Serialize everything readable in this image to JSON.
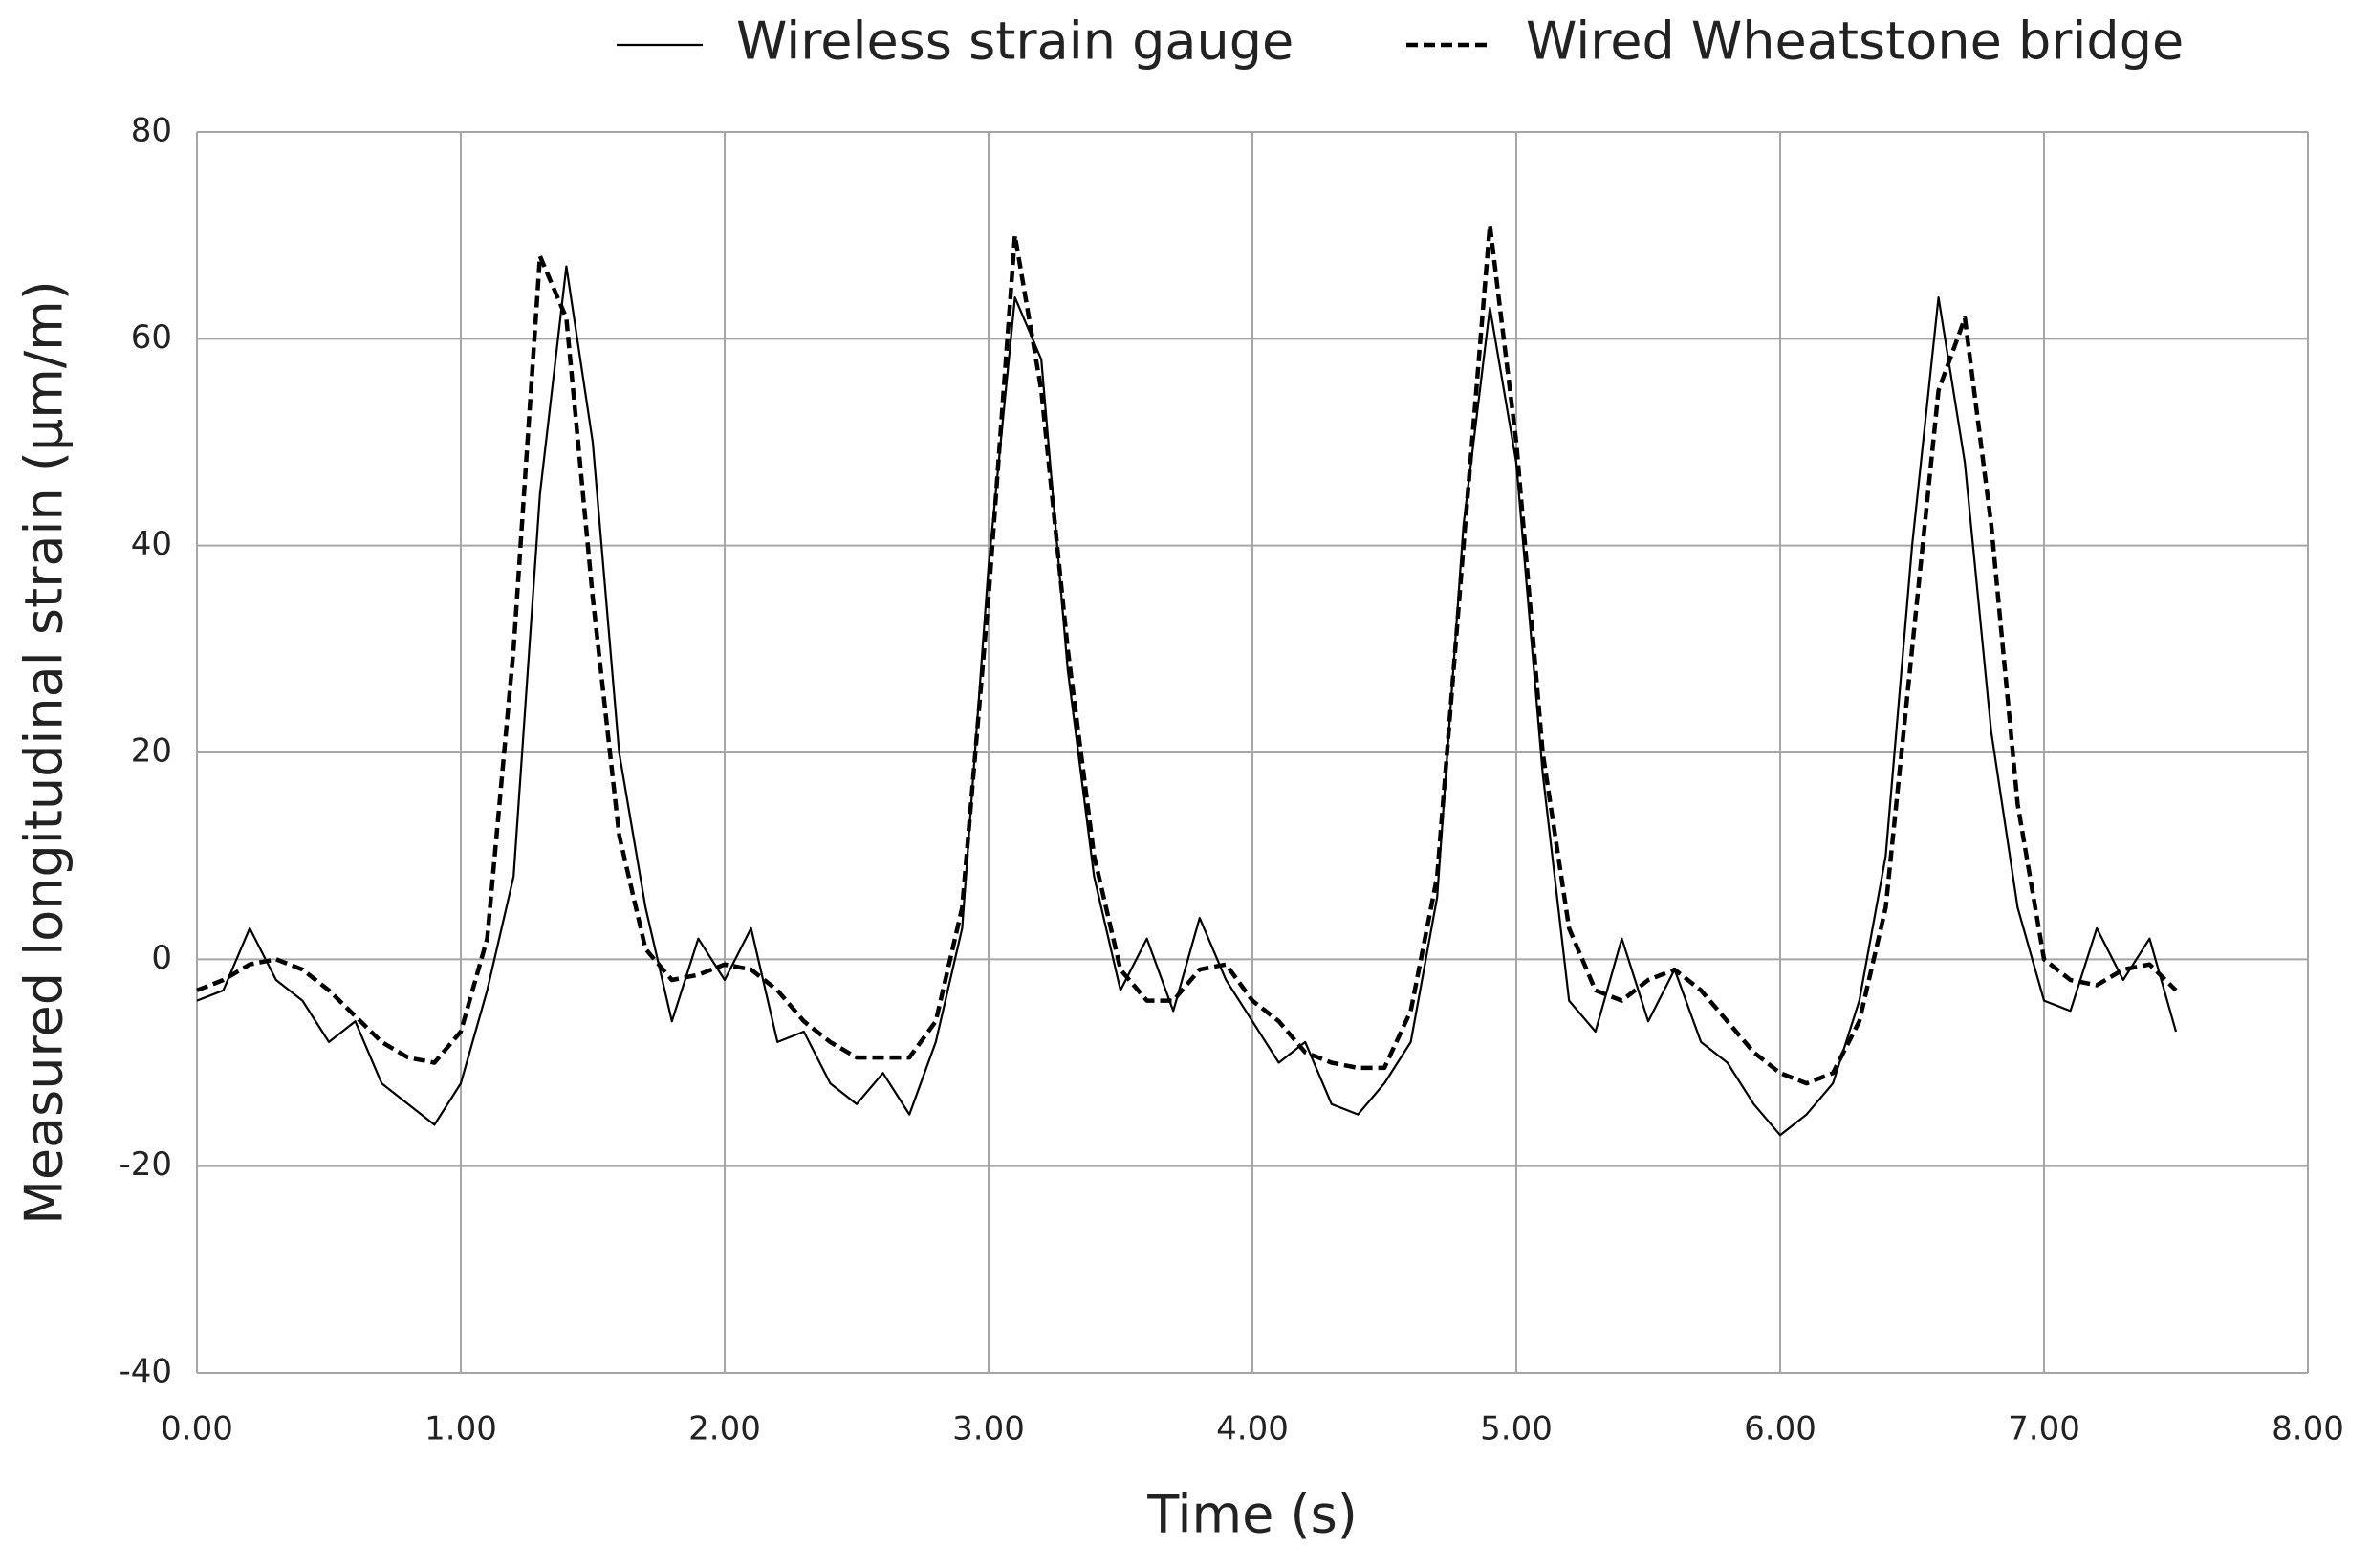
{
  "chart_data": {
    "type": "line",
    "x_label": "Time (s)",
    "y_label": "Measured longitudinal strain (µm/m)",
    "x": [
      0,
      0.1,
      0.2,
      0.3,
      0.4,
      0.5,
      0.6,
      0.7,
      0.8,
      0.9,
      1.0,
      1.1,
      1.2,
      1.3,
      1.4,
      1.5,
      1.6,
      1.7,
      1.8,
      1.9,
      2.0,
      2.1,
      2.2,
      2.3,
      2.4,
      2.5,
      2.6,
      2.7,
      2.8,
      2.9,
      3.0,
      3.1,
      3.2,
      3.3,
      3.4,
      3.5,
      3.6,
      3.7,
      3.8,
      3.9,
      4.0,
      4.1,
      4.2,
      4.3,
      4.4,
      4.5,
      4.6,
      4.7,
      4.8,
      4.9,
      5.0,
      5.1,
      5.2,
      5.3,
      5.4,
      5.5,
      5.6,
      5.7,
      5.8,
      5.9,
      6.0,
      6.1,
      6.2,
      6.3,
      6.4,
      6.5,
      6.6,
      6.7,
      6.8,
      6.9,
      7.0,
      7.1,
      7.2,
      7.3,
      7.4,
      7.5
    ],
    "series": [
      {
        "name": "Wireless strain gauge",
        "color": "#000000",
        "line_style": "solid",
        "values": [
          -4,
          -3,
          3,
          -2,
          -4,
          -8,
          -6,
          -12,
          -14,
          -16,
          -12,
          -3,
          8,
          45,
          67,
          50,
          20,
          5,
          -6,
          2,
          -2,
          3,
          -8,
          -7,
          -12,
          -14,
          -11,
          -15,
          -8,
          3,
          38,
          64,
          58,
          28,
          8,
          -3,
          2,
          -5,
          4,
          -2,
          -6,
          -10,
          -8,
          -14,
          -15,
          -12,
          -8,
          6,
          42,
          63,
          48,
          18,
          -4,
          -7,
          2,
          -6,
          -1,
          -8,
          -10,
          -14,
          -17,
          -15,
          -12,
          -4,
          10,
          40,
          64,
          48,
          22,
          5,
          -4,
          -5,
          3,
          -2,
          2,
          -7
        ]
      },
      {
        "name": "Wired Wheatstone bridge",
        "color": "#000000",
        "line_style": "dashed",
        "values": [
          -3,
          -2,
          -0.5,
          0,
          -1,
          -3,
          -5.5,
          -8,
          -9.5,
          -10,
          -7,
          2,
          30,
          68,
          62,
          35,
          12,
          1,
          -2,
          -1.5,
          -0.5,
          -1,
          -3,
          -6,
          -8,
          -9.5,
          -9.5,
          -9.5,
          -6,
          5,
          35,
          70,
          55,
          30,
          10,
          -1,
          -4,
          -4,
          -1,
          -0.5,
          -4,
          -6,
          -9,
          -10,
          -10.5,
          -10.5,
          -5,
          8,
          40,
          71,
          50,
          20,
          3,
          -3,
          -4,
          -2,
          -1,
          -3,
          -6,
          -9,
          -11,
          -12,
          -11,
          -6,
          5,
          30,
          55,
          62,
          42,
          15,
          0,
          -2,
          -2.5,
          -1,
          -0.5,
          -3
        ]
      }
    ],
    "xlim": [
      0,
      8
    ],
    "xticks": [
      {
        "value": 0,
        "label": "0.00"
      },
      {
        "value": 1,
        "label": "1.00"
      },
      {
        "value": 2,
        "label": "2.00"
      },
      {
        "value": 3,
        "label": "3.00"
      },
      {
        "value": 4,
        "label": "4.00"
      },
      {
        "value": 5,
        "label": "5.00"
      },
      {
        "value": 6,
        "label": "6.00"
      },
      {
        "value": 7,
        "label": "7.00"
      },
      {
        "value": 8,
        "label": "8.00"
      }
    ],
    "ylim": [
      -40,
      80
    ],
    "yticks": [
      -40,
      -20,
      0,
      20,
      40,
      60,
      80
    ],
    "grid": true,
    "legend": "top"
  }
}
